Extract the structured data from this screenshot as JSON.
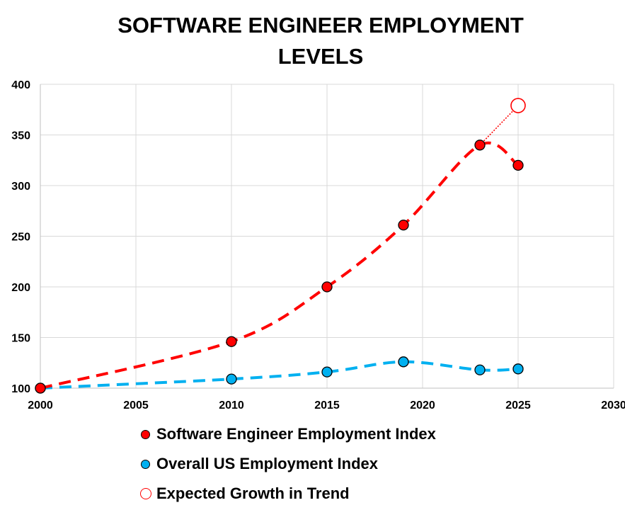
{
  "chart_data": {
    "type": "line",
    "title_lines": [
      "SOFTWARE ENGINEER EMPLOYMENT",
      "LEVELS"
    ],
    "xlim": [
      2000,
      2030
    ],
    "ylim": [
      100,
      400
    ],
    "x_ticks": [
      2000,
      2005,
      2010,
      2015,
      2020,
      2025,
      2030
    ],
    "y_ticks": [
      100,
      150,
      200,
      250,
      300,
      350,
      400
    ],
    "x_tick_labels": [
      "2000",
      "2005",
      "2010",
      "2015",
      "2020",
      "2025",
      "2030"
    ],
    "y_tick_labels": [
      "100",
      "150",
      "200",
      "250",
      "300",
      "350",
      "400"
    ],
    "grid": true,
    "legend_position": "bottom",
    "series": [
      {
        "name": "Software Engineer Employment Index",
        "color": "#ff0000",
        "marker": "filled-circle",
        "line": "dashed-smooth",
        "x": [
          2000,
          2010,
          2015,
          2019,
          2023,
          2025
        ],
        "y": [
          100,
          146,
          200,
          261,
          340,
          320
        ]
      },
      {
        "name": "Overall US Employment Index",
        "color": "#00b0f0",
        "marker": "filled-circle",
        "line": "dashed-smooth",
        "x": [
          2000,
          2010,
          2015,
          2019,
          2023,
          2025
        ],
        "y": [
          100,
          109,
          116,
          126,
          118,
          119
        ]
      },
      {
        "name": "Expected Growth in Trend",
        "color": "#ff0000",
        "marker": "hollow-circle",
        "line": "dotted",
        "x": [
          2023,
          2025
        ],
        "y": [
          340,
          379
        ]
      }
    ]
  }
}
